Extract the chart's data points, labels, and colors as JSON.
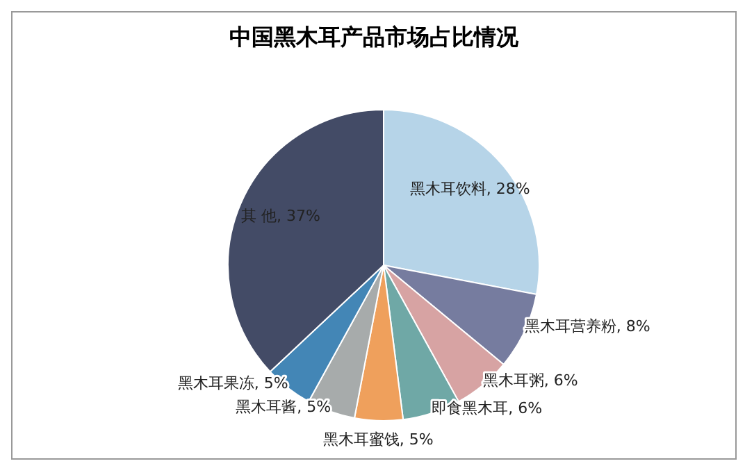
{
  "chart_data": {
    "type": "pie",
    "title": "中国黑木耳产品市场占比情况",
    "categories": [
      "黑木耳饮料",
      "黑木耳营养粉",
      "黑木耳粥",
      "即食黑木耳",
      "黑木耳蜜饯",
      "黑木耳酱",
      "黑木耳果冻",
      "其 他"
    ],
    "values": [
      28,
      8,
      6,
      6,
      5,
      5,
      5,
      37
    ],
    "value_labels": [
      "28%",
      "8%",
      "6%",
      "6%",
      "5%",
      "5%",
      "5%",
      "37%"
    ],
    "colors": [
      "#b6d4e8",
      "#767c9f",
      "#d7a3a3",
      "#6fa8a6",
      "#efa05c",
      "#a7abab",
      "#4386b6",
      "#434b66"
    ],
    "legend": false
  }
}
